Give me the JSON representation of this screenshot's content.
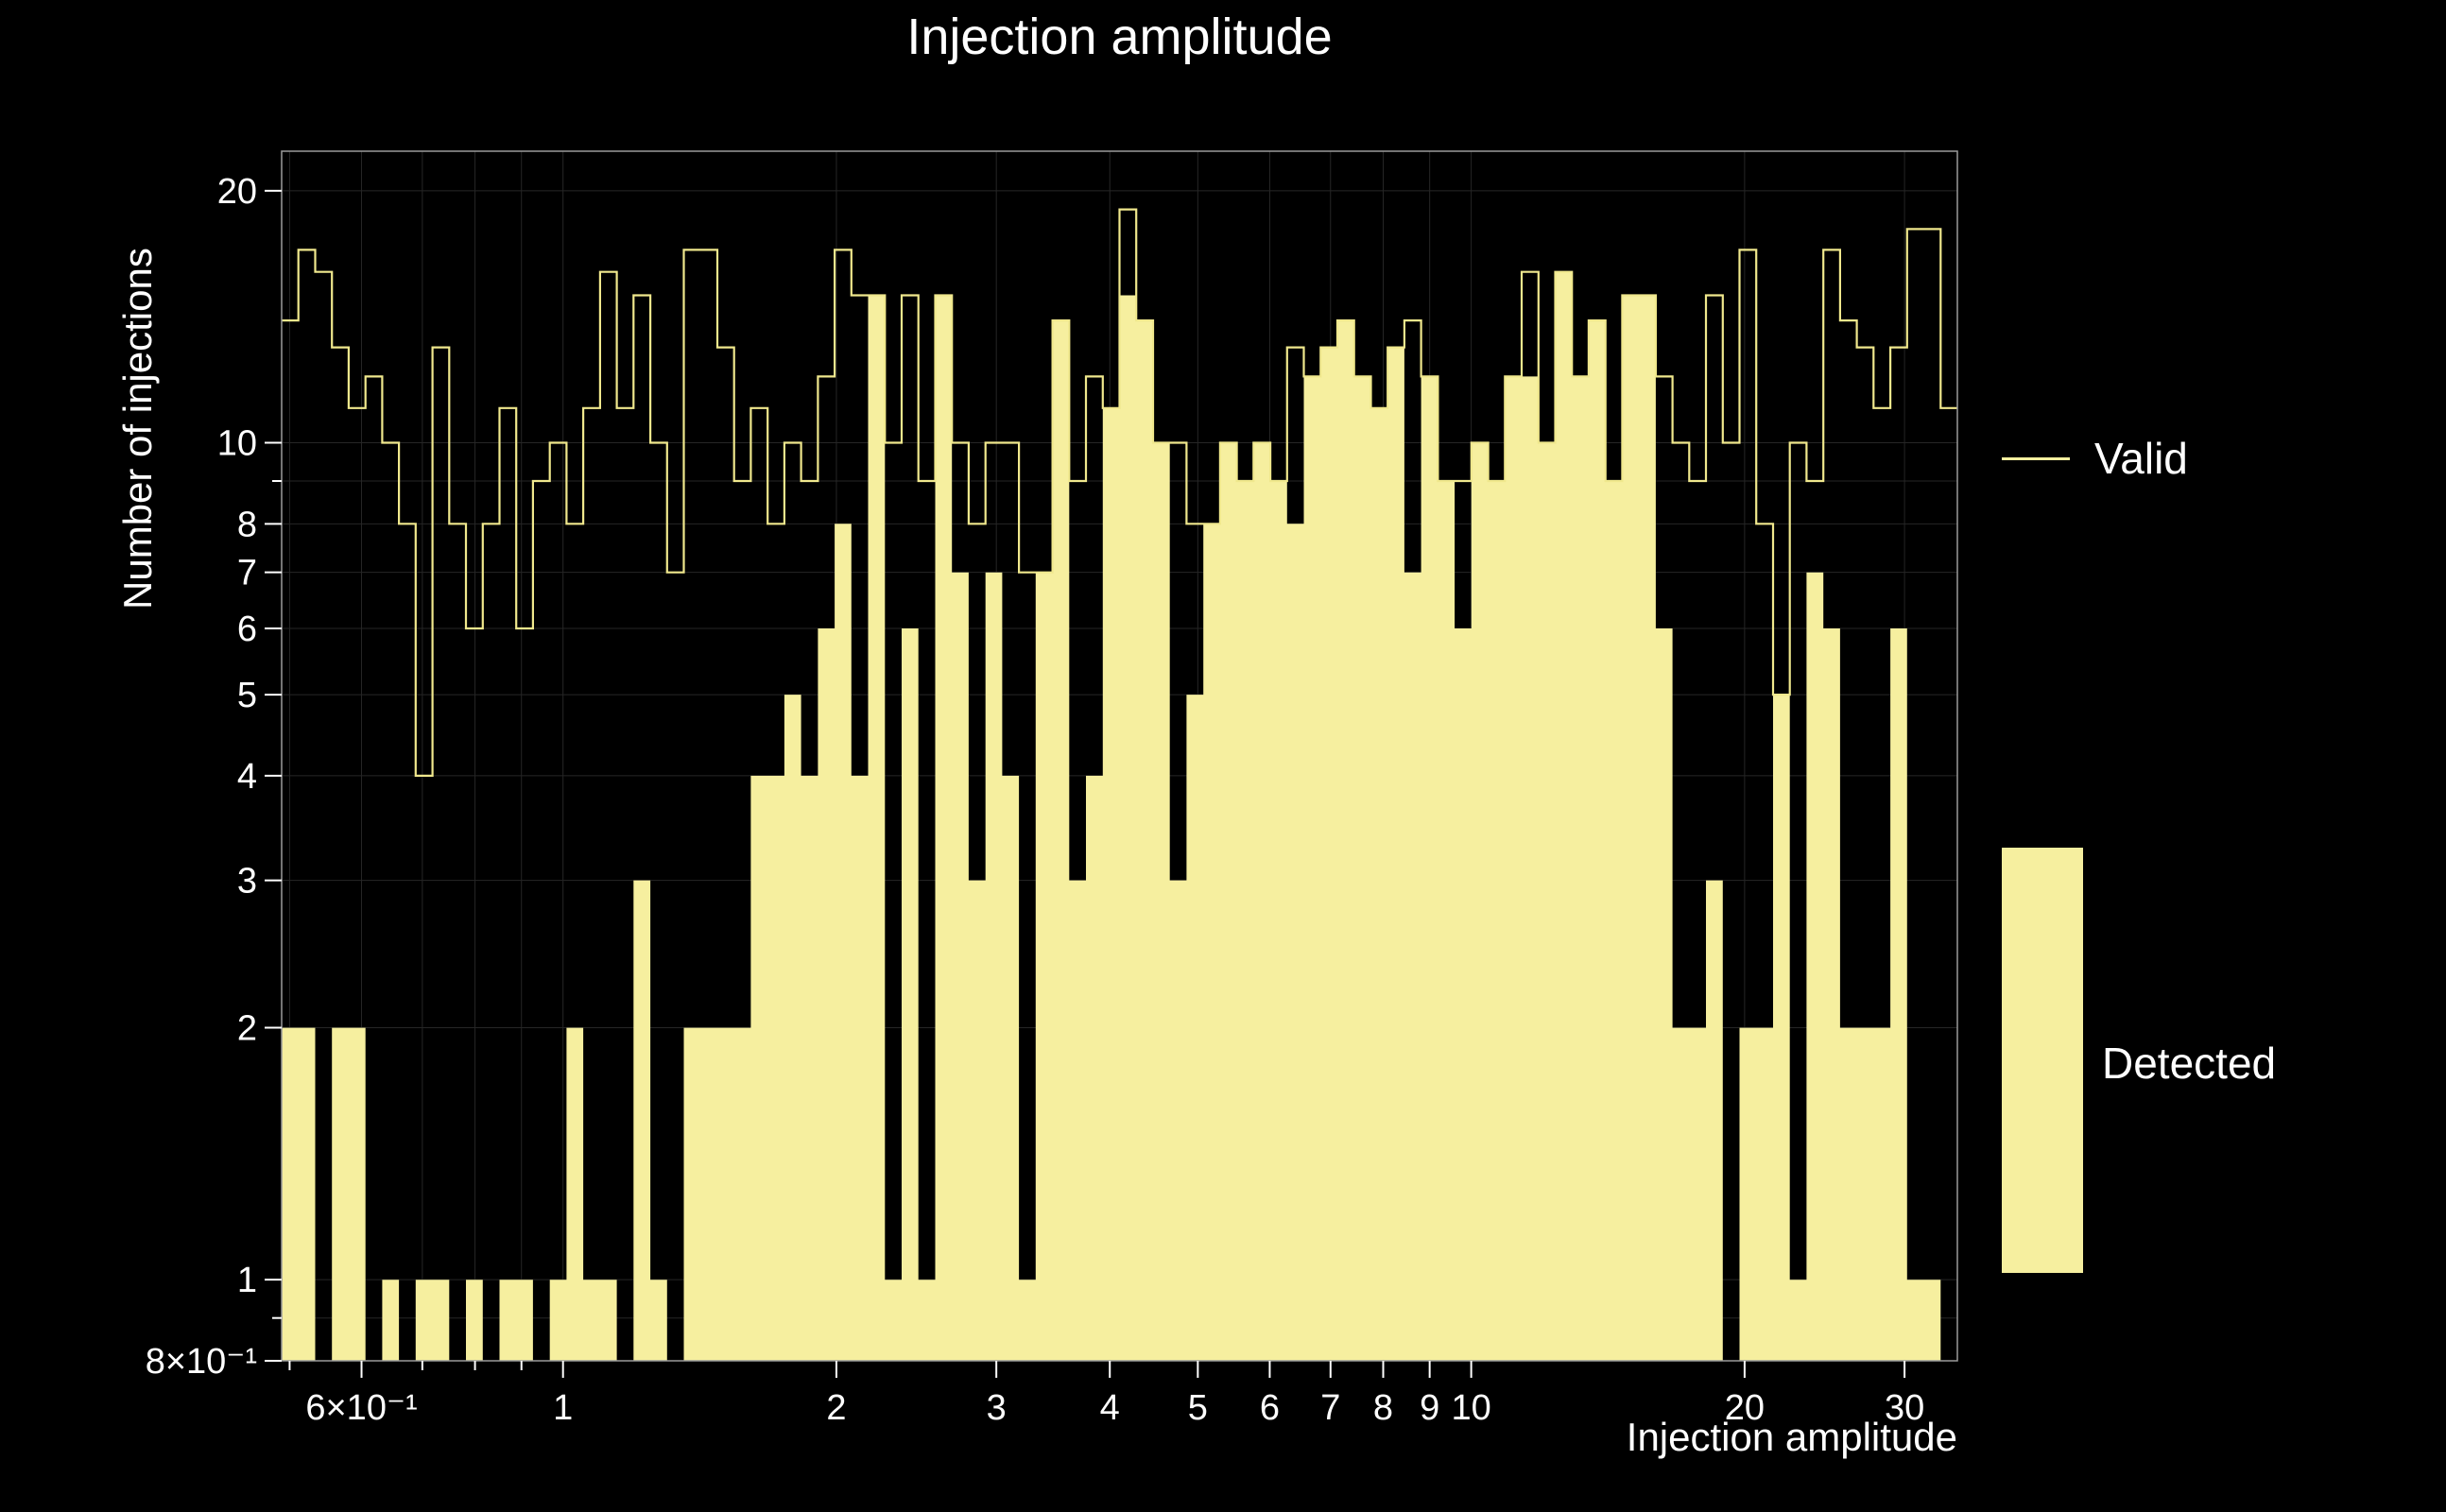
{
  "chart_data": {
    "type": "bar",
    "subtype": "log-log step histogram",
    "title": "Injection amplitude",
    "xlabel": "Injection amplitude",
    "ylabel": "Number of injections",
    "background": "#000000",
    "colors": {
      "fill": "#f6ef9f",
      "line": "#f0e88d",
      "grid": "#262626",
      "frame": "#9a9a9a",
      "text": "#ffffff"
    },
    "x_axis": {
      "label": "Injection amplitude",
      "scale": "log",
      "min": 0.49,
      "max": 34.3,
      "ticks": [
        {
          "v": 0.6,
          "label": "6×10⁻¹"
        },
        {
          "v": 1,
          "label": "1"
        },
        {
          "v": 2,
          "label": "2"
        },
        {
          "v": 3,
          "label": "3"
        },
        {
          "v": 4,
          "label": "4"
        },
        {
          "v": 5,
          "label": "5"
        },
        {
          "v": 6,
          "label": "6"
        },
        {
          "v": 7,
          "label": "7"
        },
        {
          "v": 8,
          "label": "8"
        },
        {
          "v": 9,
          "label": "9"
        },
        {
          "v": 10,
          "label": "10"
        },
        {
          "v": 20,
          "label": "20"
        },
        {
          "v": 30,
          "label": "30"
        }
      ],
      "grid": [
        0.5,
        0.6,
        0.7,
        0.8,
        0.9,
        1,
        2,
        3,
        4,
        5,
        6,
        7,
        8,
        9,
        10,
        20,
        30
      ]
    },
    "y_axis": {
      "label": "Number of injections",
      "scale": "log",
      "min": 0.8,
      "max": 22.3,
      "ticks": [
        {
          "v": 0.8,
          "label": "8×10⁻¹"
        },
        {
          "v": 1,
          "label": "1"
        },
        {
          "v": 2,
          "label": "2"
        },
        {
          "v": 3,
          "label": "3"
        },
        {
          "v": 4,
          "label": "4"
        },
        {
          "v": 5,
          "label": "5"
        },
        {
          "v": 6,
          "label": "6"
        },
        {
          "v": 7,
          "label": "7"
        },
        {
          "v": 8,
          "label": "8"
        },
        {
          "v": 10,
          "label": "10"
        },
        {
          "v": 20,
          "label": "20"
        }
      ],
      "grid": [
        0.9,
        1,
        2,
        3,
        4,
        5,
        6,
        7,
        8,
        9,
        10,
        20
      ]
    },
    "bins": {
      "min": 0.49,
      "max": 34.3,
      "count": 100,
      "spacing": "log"
    },
    "series": [
      {
        "name": "Valid",
        "style": "step-line",
        "values": [
          14,
          17,
          16,
          13,
          11,
          12,
          10,
          8,
          4,
          13,
          8,
          6,
          8,
          11,
          6,
          9,
          10,
          8,
          11,
          16,
          11,
          15,
          10,
          7,
          17,
          17,
          13,
          9,
          11,
          8,
          10,
          9,
          12,
          17,
          15,
          15,
          10,
          15,
          9,
          15,
          10,
          8,
          10,
          10,
          7,
          7,
          14,
          9,
          12,
          11,
          19,
          14,
          10,
          10,
          8,
          8,
          10,
          9,
          10,
          9,
          13,
          12,
          13,
          14,
          12,
          11,
          13,
          14,
          12,
          9,
          9,
          10,
          9,
          12,
          16,
          10,
          16,
          12,
          14,
          9,
          15,
          15,
          12,
          10,
          9,
          15,
          10,
          17,
          8,
          5,
          10,
          9,
          17,
          14,
          13,
          11,
          13,
          18,
          18,
          11
        ]
      },
      {
        "name": "Detected",
        "style": "filled",
        "values": [
          2,
          2,
          0,
          2,
          2,
          0,
          1,
          0,
          1,
          1,
          0,
          1,
          0,
          1,
          1,
          0,
          1,
          2,
          1,
          1,
          0,
          3,
          1,
          0,
          2,
          2,
          2,
          2,
          4,
          4,
          5,
          4,
          6,
          8,
          4,
          15,
          1,
          6,
          1,
          15,
          7,
          3,
          7,
          4,
          1,
          7,
          14,
          3,
          4,
          11,
          15,
          14,
          10,
          3,
          5,
          8,
          10,
          9,
          10,
          9,
          8,
          12,
          13,
          14,
          12,
          11,
          13,
          7,
          12,
          9,
          6,
          10,
          9,
          12,
          12,
          10,
          16,
          12,
          14,
          9,
          15,
          15,
          6,
          2,
          2,
          3,
          0,
          2,
          2,
          5,
          1,
          7,
          6,
          2,
          2,
          2,
          6,
          1,
          1,
          0
        ]
      }
    ],
    "legend": [
      {
        "label": "Valid",
        "marker": "line"
      },
      {
        "label": "Detected",
        "marker": "filled-box"
      }
    ]
  }
}
